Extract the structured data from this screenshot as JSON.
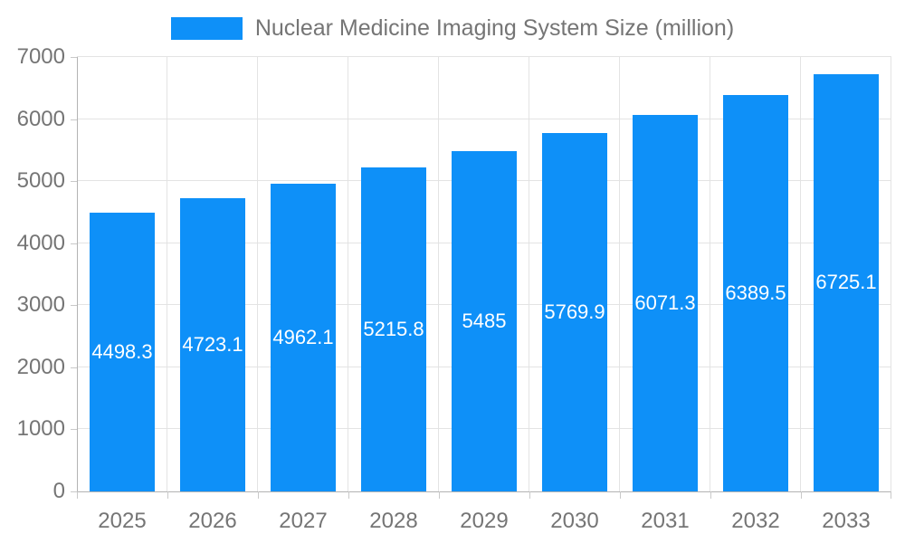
{
  "legend": {
    "label": "Nuclear Medicine Imaging System Size (million)"
  },
  "colors": {
    "bar": "#0e90f8",
    "axis_text": "#757575",
    "grid_line": "#e3e3e3",
    "axis_line": "#b3b3b3",
    "bar_label_text": "#ffffff",
    "background": "#ffffff"
  },
  "chart_data": {
    "type": "bar",
    "title": "Nuclear Medicine Imaging System Size (million)",
    "categories": [
      "2025",
      "2026",
      "2027",
      "2028",
      "2029",
      "2030",
      "2031",
      "2032",
      "2033"
    ],
    "values": [
      4498.3,
      4723.1,
      4962.1,
      5215.8,
      5485,
      5769.9,
      6071.3,
      6389.5,
      6725.1
    ],
    "value_labels": [
      "4498.3",
      "4723.1",
      "4962.1",
      "5215.8",
      "5485",
      "5769.9",
      "6071.3",
      "6389.5",
      "6725.1"
    ],
    "xlabel": "",
    "ylabel": "",
    "ylim": [
      0,
      7000
    ],
    "yticks": [
      0,
      1000,
      2000,
      3000,
      4000,
      5000,
      6000,
      7000
    ],
    "grid": true,
    "legend_position": "top",
    "bar_label_position": "inside-middle"
  }
}
